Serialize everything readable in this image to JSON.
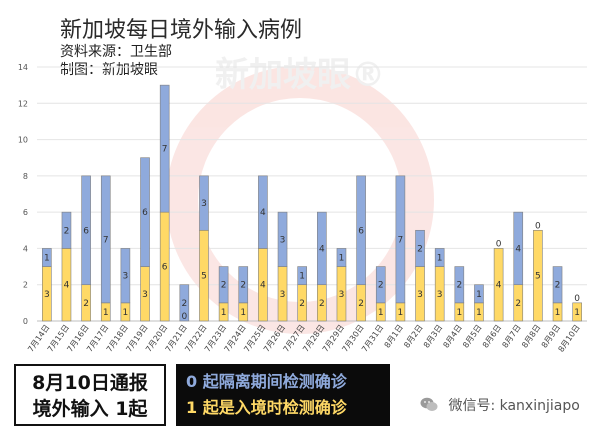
{
  "header": {
    "title": "新加坡每日境外输入病例",
    "source": "资料来源：卫生部",
    "maker": "制图：新加坡眼"
  },
  "watermark": "新加坡眼®",
  "footer": {
    "box_line1": "8月10日通报",
    "box_line2": "境外输入 1起",
    "legend_quarantine": "0 起隔离期间检测确诊",
    "legend_entry": "1 起是入境时检测确诊",
    "wechat": "微信号: kanxinjiapo"
  },
  "colors": {
    "quarantine": "#8faadc",
    "entry": "#ffd966",
    "legend_bg": "#0b0b0b"
  },
  "chart_data": {
    "type": "bar",
    "stacked": true,
    "ylim": [
      0,
      14
    ],
    "yticks": [
      0,
      2,
      4,
      6,
      8,
      10,
      12,
      14
    ],
    "grid": true,
    "categories": [
      "7月14日",
      "7月15日",
      "7月16日",
      "7月17日",
      "7月18日",
      "7月19日",
      "7月20日",
      "7月21日",
      "7月22日",
      "7月23日",
      "7月24日",
      "7月25日",
      "7月26日",
      "7月27日",
      "7月28日",
      "7月29日",
      "7月30日",
      "7月31日",
      "8月1日",
      "8月2日",
      "8月3日",
      "8月4日",
      "8月5日",
      "8月6日",
      "8月7日",
      "8月8日",
      "8月9日",
      "8月10日"
    ],
    "series": [
      {
        "values": [
          3,
          4,
          2,
          1,
          1,
          3,
          6,
          0,
          5,
          1,
          1,
          4,
          3,
          2,
          2,
          3,
          2,
          1,
          1,
          3,
          3,
          1,
          1,
          4,
          2,
          5,
          1,
          1
        ]
      },
      {
        "values": [
          1,
          2,
          6,
          7,
          3,
          6,
          7,
          2,
          3,
          2,
          2,
          4,
          3,
          1,
          4,
          1,
          6,
          2,
          7,
          2,
          1,
          2,
          1,
          0,
          4,
          0,
          2,
          0
        ]
      }
    ]
  }
}
